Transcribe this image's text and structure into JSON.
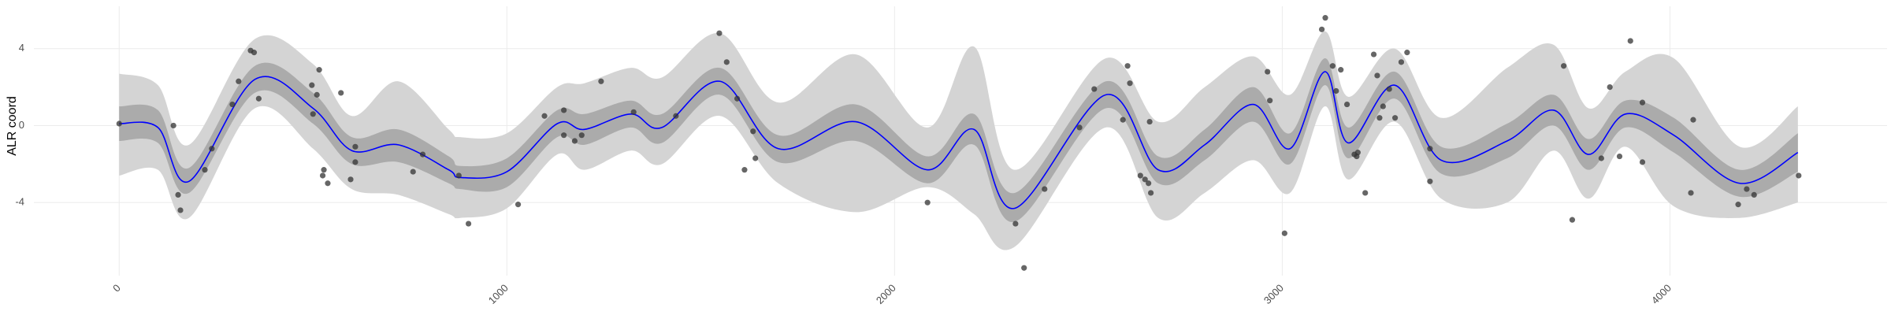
{
  "chart_data": {
    "type": "line",
    "y_label": "ALR coord",
    "xlim": [
      -220,
      4560
    ],
    "ylim": [
      -7.8,
      6.2
    ],
    "xticks": [
      0,
      1000,
      2000,
      3000,
      4000
    ],
    "yticks": [
      -4,
      0,
      4
    ],
    "grid": true,
    "x": [
      0,
      100,
      180,
      350,
      500,
      600,
      720,
      850,
      880,
      1000,
      1130,
      1200,
      1320,
      1400,
      1550,
      1700,
      1900,
      2085,
      2205,
      2310,
      2545,
      2680,
      2800,
      2925,
      3020,
      3110,
      3170,
      3290,
      3410,
      3580,
      3700,
      3790,
      3885,
      4010,
      4180,
      4330
    ],
    "bands": [
      {
        "color": "#d4d4d4",
        "lower": [
          -2.6,
          -2.3,
          -4.8,
          0.9,
          -1.2,
          -3.3,
          -3.6,
          -4.6,
          -4.8,
          -4.3,
          -1.5,
          -2.3,
          -1.3,
          -2.0,
          0.5,
          -3.0,
          -4.5,
          -3.2,
          -4.6,
          -6.3,
          -0.1,
          -4.8,
          -3.5,
          -1.8,
          -3.5,
          1.0,
          -2.8,
          0.2,
          -3.8,
          -4.0,
          -1.3,
          -3.8,
          -1.1,
          -4.2,
          -4.8,
          -4.0
        ],
        "upper": [
          2.7,
          2.1,
          -1.0,
          4.5,
          3.2,
          0.5,
          2.3,
          -0.2,
          -0.6,
          -0.4,
          2.0,
          2.2,
          3.0,
          2.5,
          4.8,
          1.2,
          3.7,
          -0.1,
          4.1,
          -2.3,
          3.5,
          0.2,
          2.0,
          3.6,
          1.6,
          4.9,
          1.5,
          4.0,
          0.4,
          3.0,
          4.2,
          0.9,
          2.8,
          3.5,
          -1.1,
          1.0
        ]
      },
      {
        "color": "#ababab",
        "lower": [
          -0.8,
          -0.9,
          -3.5,
          1.7,
          0.1,
          -2.0,
          -1.9,
          -3.0,
          -3.3,
          -3.2,
          -0.6,
          -1.0,
          -0.1,
          -0.9,
          1.6,
          -1.9,
          -0.8,
          -3.0,
          -1.0,
          -5.0,
          0.9,
          -3.0,
          -1.8,
          0.2,
          -2.0,
          2.1,
          -1.7,
          1.4,
          -2.5,
          -1.7,
          0.0,
          -2.3,
          -0.1,
          -1.4,
          -3.7,
          -2.4
        ],
        "upper": [
          1.0,
          0.8,
          -2.2,
          3.1,
          1.7,
          -0.6,
          -0.2,
          -1.6,
          -2.1,
          -1.7,
          0.8,
          0.6,
          1.3,
          0.6,
          3.0,
          -0.5,
          1.1,
          -1.6,
          0.6,
          -3.5,
          2.3,
          -1.6,
          -0.2,
          2.0,
          -0.4,
          3.5,
          -0.1,
          2.8,
          -1.1,
          0.1,
          1.6,
          -0.7,
          1.3,
          0.4,
          -2.3,
          -0.4
        ]
      }
    ],
    "series": [
      {
        "color": "#0000ff",
        "values": [
          0.1,
          -0.1,
          -2.9,
          2.4,
          0.9,
          -1.3,
          -1.0,
          -2.3,
          -2.7,
          -2.4,
          0.1,
          -0.2,
          0.6,
          -0.1,
          2.3,
          -1.2,
          0.2,
          -2.3,
          -0.2,
          -4.3,
          1.6,
          -2.3,
          -1.0,
          1.1,
          -1.2,
          2.8,
          -0.9,
          2.1,
          -1.8,
          -0.8,
          0.8,
          -1.5,
          0.6,
          -0.5,
          -3.0,
          -1.4
        ]
      }
    ],
    "points": {
      "color": "#333333",
      "x": [
        0,
        140,
        152,
        158,
        221,
        239,
        292,
        308,
        339,
        348,
        360,
        497,
        500,
        516,
        510,
        528,
        525,
        538,
        572,
        597,
        609,
        609,
        758,
        783,
        876,
        901,
        1029,
        1097,
        1147,
        1147,
        1175,
        1193,
        1243,
        1327,
        1436,
        1548,
        1567,
        1594,
        1613,
        1635,
        1641,
        2085,
        2312,
        2334,
        2387,
        2477,
        2515,
        2601,
        2607,
        2589,
        2634,
        2646,
        2655,
        2661,
        2658,
        2962,
        2968,
        3006,
        3102,
        3111,
        3130,
        3139,
        3151,
        3167,
        3186,
        3192,
        3195,
        3214,
        3236,
        3245,
        3251,
        3260,
        3276,
        3291,
        3307,
        3322,
        3381,
        3381,
        3726,
        3748,
        3823,
        3845,
        3870,
        3898,
        3929,
        3929,
        4060,
        4054,
        4176,
        4198,
        4217,
        4332
      ],
      "y": [
        0.1,
        0.0,
        -3.6,
        -4.4,
        -2.3,
        -1.2,
        1.1,
        2.3,
        3.9,
        3.8,
        1.4,
        2.1,
        0.6,
        2.9,
        1.6,
        -2.3,
        -2.6,
        -3.0,
        1.7,
        -2.8,
        -1.1,
        -1.9,
        -2.4,
        -1.5,
        -2.6,
        -5.1,
        -4.1,
        0.5,
        0.8,
        -0.5,
        -0.8,
        -0.5,
        2.3,
        0.7,
        0.5,
        4.8,
        3.3,
        1.4,
        -2.3,
        -0.3,
        -1.7,
        -4.0,
        -5.1,
        -7.4,
        -3.3,
        -0.1,
        1.9,
        3.1,
        2.2,
        0.3,
        -2.6,
        -2.8,
        -3.0,
        -3.5,
        0.2,
        2.8,
        1.3,
        -5.6,
        5.0,
        5.6,
        3.1,
        1.8,
        2.9,
        1.1,
        -1.5,
        -1.6,
        -1.4,
        -3.5,
        3.7,
        2.6,
        0.4,
        1.0,
        1.9,
        0.4,
        3.3,
        3.8,
        -1.2,
        -2.9,
        3.1,
        -4.9,
        -1.7,
        2.0,
        -1.6,
        4.4,
        1.2,
        -1.9,
        0.3,
        -3.5,
        -4.1,
        -3.3,
        -3.6,
        -2.6
      ]
    }
  }
}
